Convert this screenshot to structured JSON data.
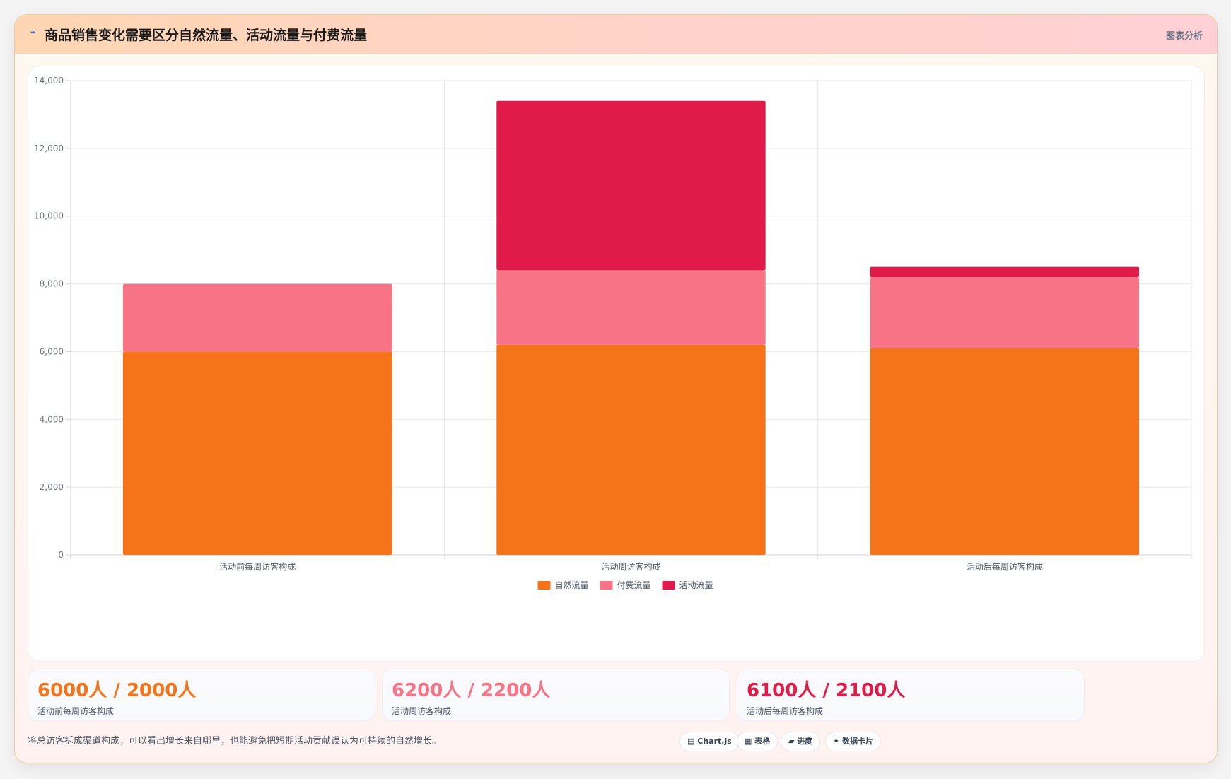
{
  "header": {
    "icon": "chart-line-icon",
    "title": "商品销售变化需要区分自然流量、活动流量与付费流量",
    "tag": "图表分析"
  },
  "chart_data": {
    "type": "bar",
    "stacked": true,
    "categories": [
      "活动前每周访客构成",
      "活动周访客构成",
      "活动后每周访客构成"
    ],
    "series": [
      {
        "name": "自然流量",
        "color": "#f67419",
        "values": [
          6000,
          6200,
          6100
        ]
      },
      {
        "name": "付费流量",
        "color": "#f97387",
        "values": [
          2000,
          2200,
          2100
        ]
      },
      {
        "name": "活动流量",
        "color": "#e01b4a",
        "values": [
          0,
          5000,
          300
        ]
      }
    ],
    "ylim": [
      0,
      14000
    ],
    "yticks": [
      "0",
      "2,000",
      "4,000",
      "6,000",
      "8,000",
      "10,000",
      "12,000",
      "14,000"
    ],
    "ytick_values": [
      0,
      2000,
      4000,
      6000,
      8000,
      10000,
      12000,
      14000
    ],
    "grid": true,
    "legend_position": "bottom"
  },
  "stats": [
    {
      "value": "6000人 / 2000人",
      "label": "活动前每周访客构成",
      "color": "#f67419"
    },
    {
      "value": "6200人 / 2200人",
      "label": "活动周访客构成",
      "color": "#f97387"
    },
    {
      "value": "6100人 / 2100人",
      "label": "活动后每周访客构成",
      "color": "#e01b4a"
    }
  ],
  "footnote": "将总访客拆成渠道构成，可以看出增长来自哪里，也能避免把短期活动贡献误认为可持续的自然增长。",
  "chips": [
    {
      "icon": "chart-icon",
      "glyph": "▤",
      "label": "Chart.js"
    },
    {
      "icon": "table-icon",
      "glyph": "▦",
      "label": "表格"
    },
    {
      "icon": "progress-icon",
      "glyph": "▰",
      "label": "进度"
    },
    {
      "icon": "sparkle-icon",
      "glyph": "✦",
      "label": "数据卡片"
    }
  ]
}
